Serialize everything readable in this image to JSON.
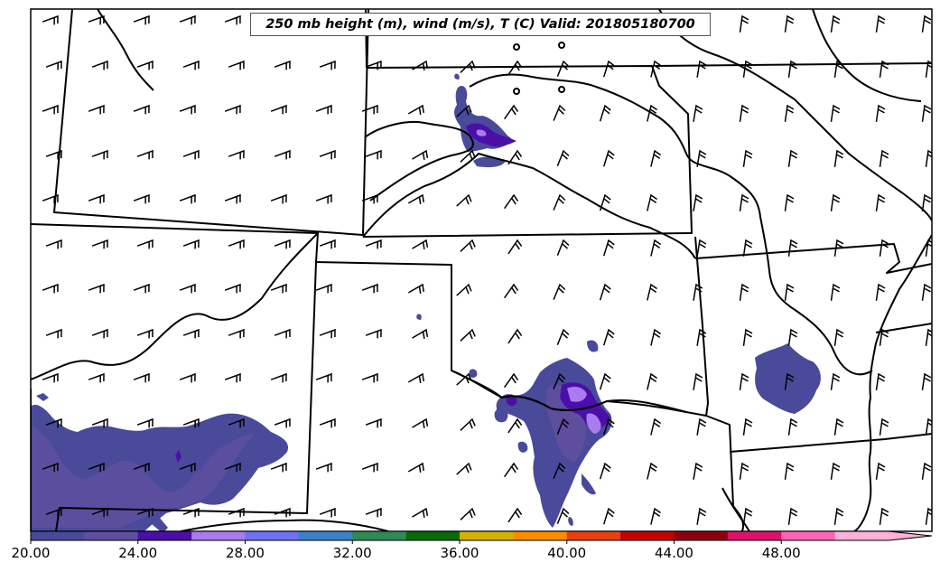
{
  "title": "250 mb height (m), wind (m/s), T (C) Valid: 201805180700",
  "colorbar": {
    "tick_labels": [
      "20.00",
      "24.00",
      "28.00",
      "32.00",
      "36.00",
      "40.00",
      "44.00",
      "48.00"
    ],
    "tick_values": [
      20,
      24,
      28,
      32,
      36,
      40,
      44,
      48
    ],
    "min": 20,
    "max": 52,
    "bin_width": 2,
    "extend": "max",
    "colors": [
      "#4a4a9a",
      "#5e4f9e",
      "#4b0fa8",
      "#aa7af0",
      "#6f70f5",
      "#3c80c8",
      "#2e8b57",
      "#0a6a0a",
      "#d4b000",
      "#ff8c00",
      "#e84010",
      "#c40000",
      "#8b0010",
      "#e0106a",
      "#ff66b4",
      "#ffb0d8"
    ]
  },
  "shading": {
    "low": "#4a4a9a",
    "mid": "#5e4f9e",
    "purple": "#4b0fa8",
    "lavender": "#aa7af0"
  },
  "wind_barb_color": "#000000",
  "map_border_color": "#000000"
}
